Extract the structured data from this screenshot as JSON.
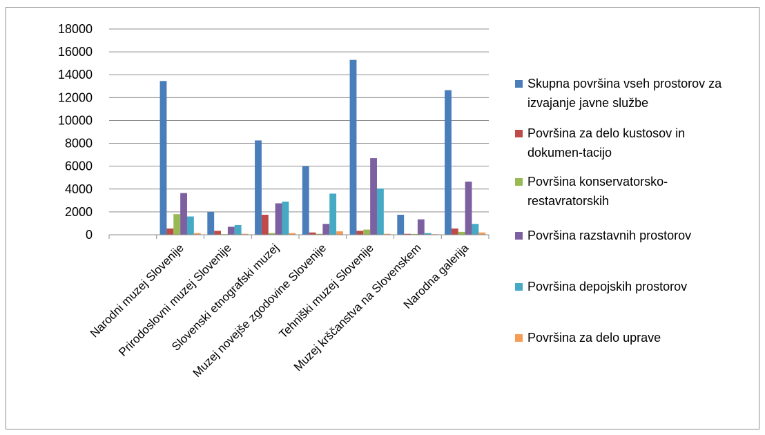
{
  "chart_data": {
    "type": "bar",
    "title": "",
    "xlabel": "",
    "ylabel": "",
    "ylim": [
      0,
      18000
    ],
    "yticks": [
      0,
      2000,
      4000,
      6000,
      8000,
      10000,
      12000,
      14000,
      16000,
      18000
    ],
    "grid": true,
    "legend_position": "right",
    "categories": [
      "",
      "Narodni muzej Slovenije",
      "Prirodoslovni muzej Slovenije",
      "Slovenski etnografski muzej",
      "Muzej novejše zgodovine Slovenije",
      "Tehniški muzej Slovenije",
      "Muzej krščanstva na Slovenskem",
      "Narodna galerija"
    ],
    "series": [
      {
        "name": "Skupna površina vseh prostorov za izvajanje javne službe",
        "legend_lines": [
          "Skupna površina vseh prostorov za",
          "izvajanje javne službe"
        ],
        "color": "#4a7ebb",
        "values": [
          null,
          13450,
          2000,
          8250,
          6000,
          15300,
          1750,
          12650
        ]
      },
      {
        "name": "Površina za delo kustosov in dokumen-tacijo",
        "legend_lines": [
          "Površina za delo kustosov in",
          "dokumen-tacijo"
        ],
        "color": "#be4b48",
        "values": [
          null,
          550,
          350,
          1750,
          200,
          350,
          80,
          550
        ]
      },
      {
        "name": "Površina konservatorsko-restavratorskih",
        "legend_lines": [
          "Površina konservatorsko-",
          "restavratorskih"
        ],
        "color": "#98b954",
        "values": [
          null,
          1800,
          50,
          150,
          80,
          450,
          70,
          250
        ]
      },
      {
        "name": "Površina razstavnih prostorov",
        "legend_lines": [
          "Površina razstavnih prostorov"
        ],
        "color": "#7d60a0",
        "values": [
          null,
          3650,
          700,
          2750,
          950,
          6700,
          1350,
          4650
        ]
      },
      {
        "name": "Površina depojskih prostorov",
        "legend_lines": [
          "Površina depojskih prostorov"
        ],
        "color": "#46aac5",
        "values": [
          null,
          1600,
          850,
          2900,
          3600,
          4050,
          150,
          950
        ]
      },
      {
        "name": "Površina za delo uprave",
        "legend_lines": [
          "Površina za delo uprave"
        ],
        "color": "#f59d56",
        "values": [
          null,
          150,
          80,
          150,
          300,
          80,
          50,
          200
        ]
      }
    ]
  }
}
